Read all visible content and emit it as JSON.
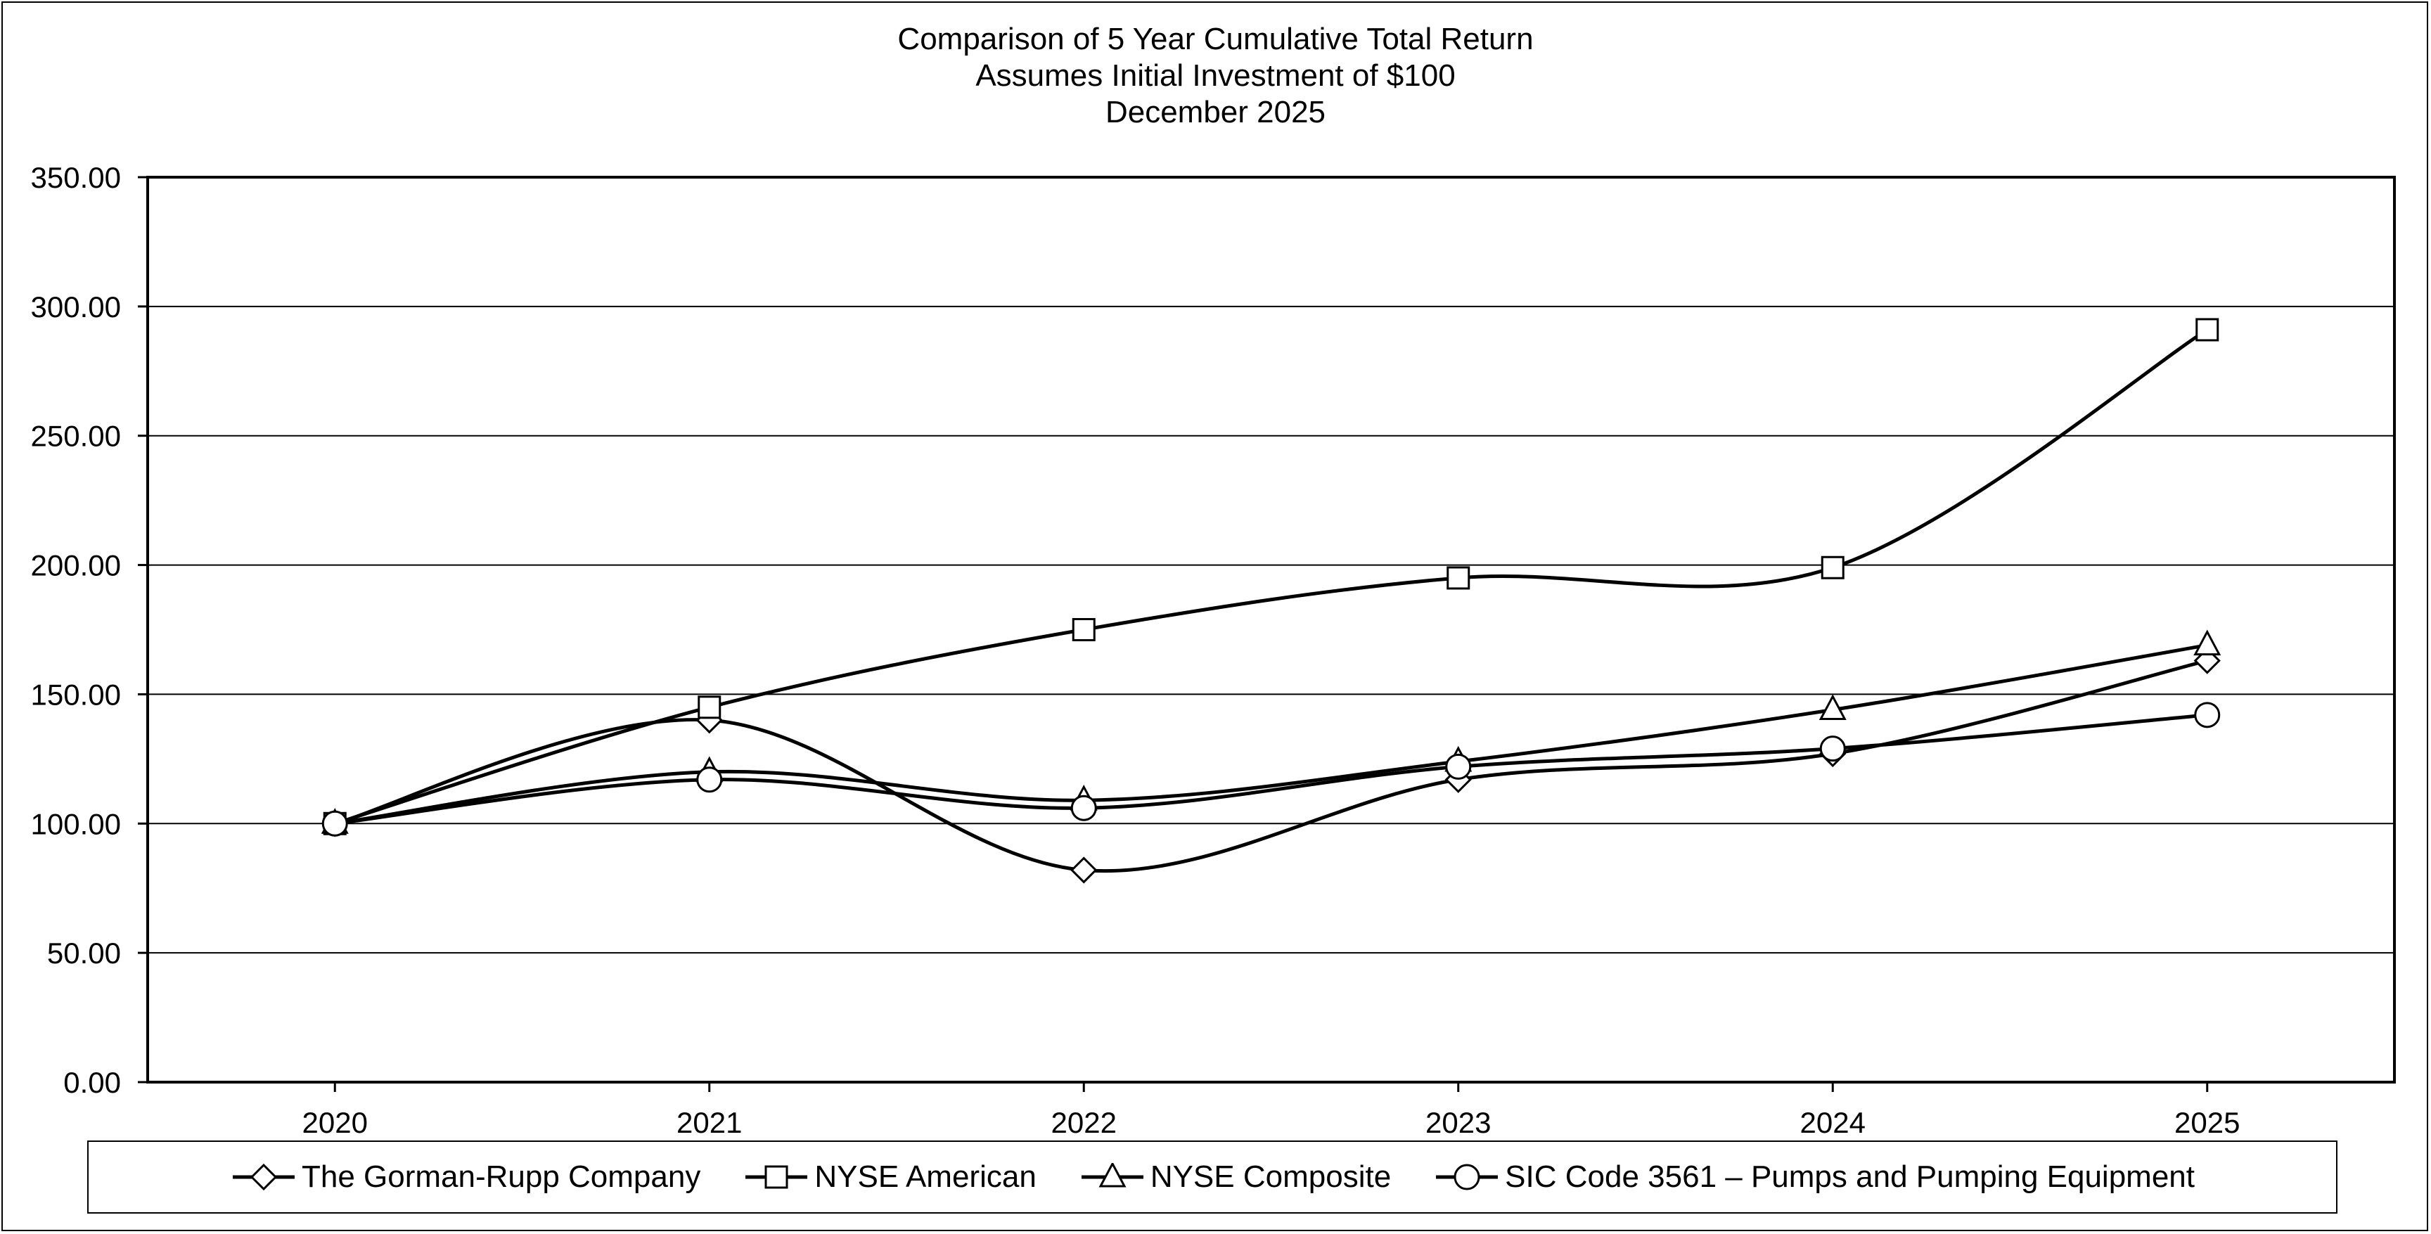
{
  "chart_data": {
    "type": "line",
    "title": "Comparison of 5 Year Cumulative Total Return",
    "subtitle_lines": [
      "Assumes Initial Investment of $100",
      "December 2025"
    ],
    "xlabel": "",
    "ylabel": "",
    "x": [
      "2020",
      "2021",
      "2022",
      "2023",
      "2024",
      "2025"
    ],
    "ylim": [
      0,
      350
    ],
    "y_ticks": [
      "0.00",
      "50.00",
      "100.00",
      "150.00",
      "200.00",
      "250.00",
      "300.00",
      "350.00"
    ],
    "grid": true,
    "legend_position": "bottom",
    "smooth": true,
    "series": [
      {
        "name": "The Gorman-Rupp Company",
        "marker": "diamond",
        "values": [
          100,
          140,
          82,
          117,
          127,
          163
        ]
      },
      {
        "name": "NYSE American",
        "marker": "square",
        "values": [
          100,
          145,
          175,
          195,
          199,
          291
        ]
      },
      {
        "name": "NYSE Composite",
        "marker": "triangle",
        "values": [
          100,
          120,
          109,
          124,
          144,
          169
        ]
      },
      {
        "name": "SIC Code 3561 – Pumps and Pumping Equipment",
        "marker": "circle",
        "values": [
          100,
          117,
          106,
          122,
          129,
          142
        ]
      }
    ],
    "colors": {
      "line": "#000000",
      "marker_fill": "#ffffff",
      "grid": "#000000"
    }
  }
}
